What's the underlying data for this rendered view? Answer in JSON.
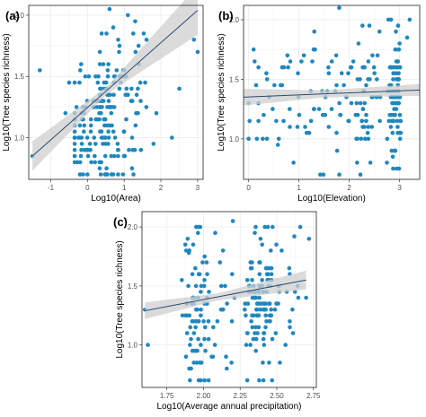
{
  "figure": {
    "panels": [
      {
        "label": "(a)",
        "chart_index": 0
      },
      {
        "label": "(b)",
        "chart_index": 1
      },
      {
        "label": "(c)",
        "chart_index": 2
      }
    ]
  },
  "colors": {
    "point": "#1f87be",
    "line": "#2b4a6f",
    "band": "#cfcfcf",
    "grid": "#ebebeb",
    "frame": "#222222"
  },
  "chart_data": [
    {
      "type": "scatter",
      "title": "",
      "panel_label": "(a)",
      "xlabel": "Log10(Area)",
      "ylabel": "Log10(Tree species richness)",
      "xlim": [
        -1.6,
        3.15
      ],
      "ylim": [
        0.66,
        2.08
      ],
      "xticks": [
        -1,
        0,
        1,
        2,
        3
      ],
      "xtick_labels": [
        "-1",
        "0",
        "1",
        "2",
        "3"
      ],
      "yticks": [
        1.0,
        1.5,
        2.0
      ],
      "ytick_labels": [
        "1.0",
        "1.5",
        "2.0"
      ],
      "grid": true,
      "n_points": 210,
      "points": [
        [
          -1.5,
          0.85
        ],
        [
          -1.3,
          1.55
        ],
        [
          -0.6,
          1.2
        ],
        [
          -0.5,
          1.45
        ],
        [
          -0.3,
          1.25
        ],
        [
          0.6,
          2.05
        ],
        [
          1.1,
          2.0
        ],
        [
          1.3,
          1.95
        ],
        [
          2.3,
          1.0
        ],
        [
          2.5,
          1.4
        ],
        [
          2.9,
          1.8
        ],
        [
          3.0,
          1.7
        ]
      ],
      "trend": {
        "x": [
          -1.5,
          3.0
        ],
        "y": [
          0.85,
          2.04
        ],
        "ci_at_start": 0.12,
        "ci_at_end": 0.2
      }
    },
    {
      "type": "scatter",
      "title": "",
      "panel_label": "(b)",
      "xlabel": "Log10(Elevation)",
      "ylabel": "Log10(Tree species richness)",
      "xlim": [
        -0.1,
        3.4
      ],
      "ylim": [
        0.66,
        2.12
      ],
      "xticks": [
        0,
        1,
        2,
        3
      ],
      "xtick_labels": [
        "0",
        "1",
        "2",
        "3"
      ],
      "yticks": [
        1.0,
        1.5,
        2.0
      ],
      "ytick_labels": [
        "1.0",
        "1.5",
        "2.0"
      ],
      "grid": true,
      "n_points": 230,
      "points": [
        [
          0.0,
          1.0
        ],
        [
          0.0,
          1.3
        ],
        [
          0.1,
          1.75
        ],
        [
          0.3,
          1.2
        ],
        [
          0.6,
          1.0
        ],
        [
          1.1,
          1.7
        ],
        [
          1.4,
          1.25
        ],
        [
          1.8,
          2.1
        ],
        [
          2.4,
          1.95
        ],
        [
          2.6,
          1.9
        ],
        [
          3.2,
          2.0
        ],
        [
          3.15,
          1.85
        ]
      ],
      "trend": {
        "x": [
          -0.1,
          3.4
        ],
        "y": [
          1.35,
          1.41
        ],
        "ci_at_start": 0.07,
        "ci_at_end": 0.05
      }
    },
    {
      "type": "scatter",
      "title": "",
      "panel_label": "(c)",
      "xlabel": "Log10(Average annual precipitation)",
      "ylabel": "Log10(Tree species richness)",
      "xlim": [
        1.58,
        2.77
      ],
      "ylim": [
        0.64,
        2.13
      ],
      "xticks": [
        1.75,
        2.0,
        2.25,
        2.5,
        2.75
      ],
      "xtick_labels": [
        "1.75",
        "2.00",
        "2.25",
        "2.50",
        "2.75"
      ],
      "yticks": [
        1.0,
        1.5,
        2.0
      ],
      "ytick_labels": [
        "1.0",
        "1.5",
        "2.0"
      ],
      "grid": true,
      "n_points": 240,
      "points": [
        [
          1.6,
          1.3
        ],
        [
          1.62,
          1.0
        ],
        [
          1.9,
          1.78
        ],
        [
          1.95,
          1.3
        ],
        [
          2.08,
          1.95
        ],
        [
          2.2,
          2.05
        ],
        [
          2.35,
          1.95
        ],
        [
          2.4,
          1.85
        ],
        [
          2.62,
          1.92
        ],
        [
          2.66,
          2.0
        ],
        [
          2.72,
          1.9
        ],
        [
          2.7,
          1.4
        ]
      ],
      "trend": {
        "x": [
          1.6,
          2.7
        ],
        "y": [
          1.29,
          1.55
        ],
        "ci_at_start": 0.07,
        "ci_at_end": 0.08
      }
    }
  ]
}
